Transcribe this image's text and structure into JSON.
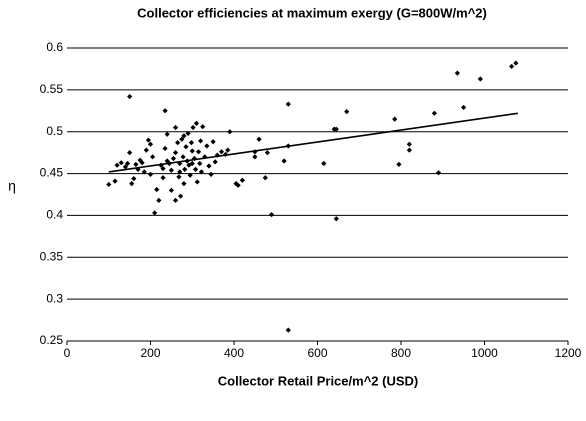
{
  "chart_data": {
    "type": "scatter",
    "title": "Collector efficiencies at maximum exergy (G=800W/m^2)",
    "x_label": "Collector Retail Price/m^2 (USD)",
    "y_label": "η",
    "color": "#000000",
    "grid": true,
    "xlim": [
      0,
      1200
    ],
    "xticks": [
      0,
      200,
      400,
      600,
      800,
      1000,
      1200
    ],
    "ylim": [
      0.25,
      0.6
    ],
    "yticks": [
      0.25,
      0.3,
      0.35,
      0.4,
      0.45,
      0.5,
      0.55,
      0.6
    ],
    "x": [
      150,
      235,
      530,
      530,
      490,
      645,
      935,
      990,
      1065,
      1075,
      950,
      880,
      785,
      820,
      820,
      890,
      795,
      615,
      670,
      645,
      640,
      530,
      520,
      475,
      480,
      450,
      450,
      460,
      420,
      410,
      405,
      390,
      385,
      380,
      370,
      100,
      115,
      130,
      140,
      145,
      150,
      155,
      160,
      165,
      170,
      175,
      185,
      190,
      195,
      200,
      205,
      210,
      215,
      220,
      225,
      230,
      235,
      240,
      240,
      245,
      250,
      250,
      255,
      260,
      260,
      265,
      268,
      270,
      272,
      275,
      278,
      280,
      282,
      285,
      288,
      290,
      292,
      295,
      298,
      300,
      302,
      305,
      308,
      310,
      312,
      315,
      318,
      320,
      322,
      325,
      330,
      335,
      340,
      345,
      350,
      355,
      360,
      300,
      270,
      280,
      260,
      230,
      200,
      180,
      120
    ],
    "values": [
      0.542,
      0.525,
      0.533,
      0.263,
      0.401,
      0.396,
      0.57,
      0.563,
      0.578,
      0.582,
      0.529,
      0.522,
      0.515,
      0.485,
      0.478,
      0.451,
      0.461,
      0.462,
      0.524,
      0.503,
      0.503,
      0.483,
      0.465,
      0.445,
      0.475,
      0.47,
      0.476,
      0.491,
      0.442,
      0.436,
      0.438,
      0.5,
      0.478,
      0.473,
      0.476,
      0.437,
      0.441,
      0.463,
      0.458,
      0.462,
      0.475,
      0.438,
      0.444,
      0.461,
      0.455,
      0.466,
      0.452,
      0.478,
      0.49,
      0.449,
      0.47,
      0.403,
      0.431,
      0.418,
      0.46,
      0.445,
      0.48,
      0.497,
      0.465,
      0.462,
      0.454,
      0.43,
      0.468,
      0.475,
      0.418,
      0.487,
      0.446,
      0.462,
      0.423,
      0.491,
      0.47,
      0.495,
      0.455,
      0.482,
      0.465,
      0.498,
      0.46,
      0.448,
      0.487,
      0.477,
      0.505,
      0.468,
      0.455,
      0.51,
      0.44,
      0.476,
      0.462,
      0.489,
      0.452,
      0.506,
      0.47,
      0.483,
      0.459,
      0.449,
      0.488,
      0.464,
      0.472,
      0.462,
      0.452,
      0.438,
      0.505,
      0.456,
      0.485,
      0.463,
      0.46
    ],
    "trendline": {
      "x": [
        100,
        1080
      ],
      "values": [
        0.452,
        0.522
      ]
    }
  }
}
